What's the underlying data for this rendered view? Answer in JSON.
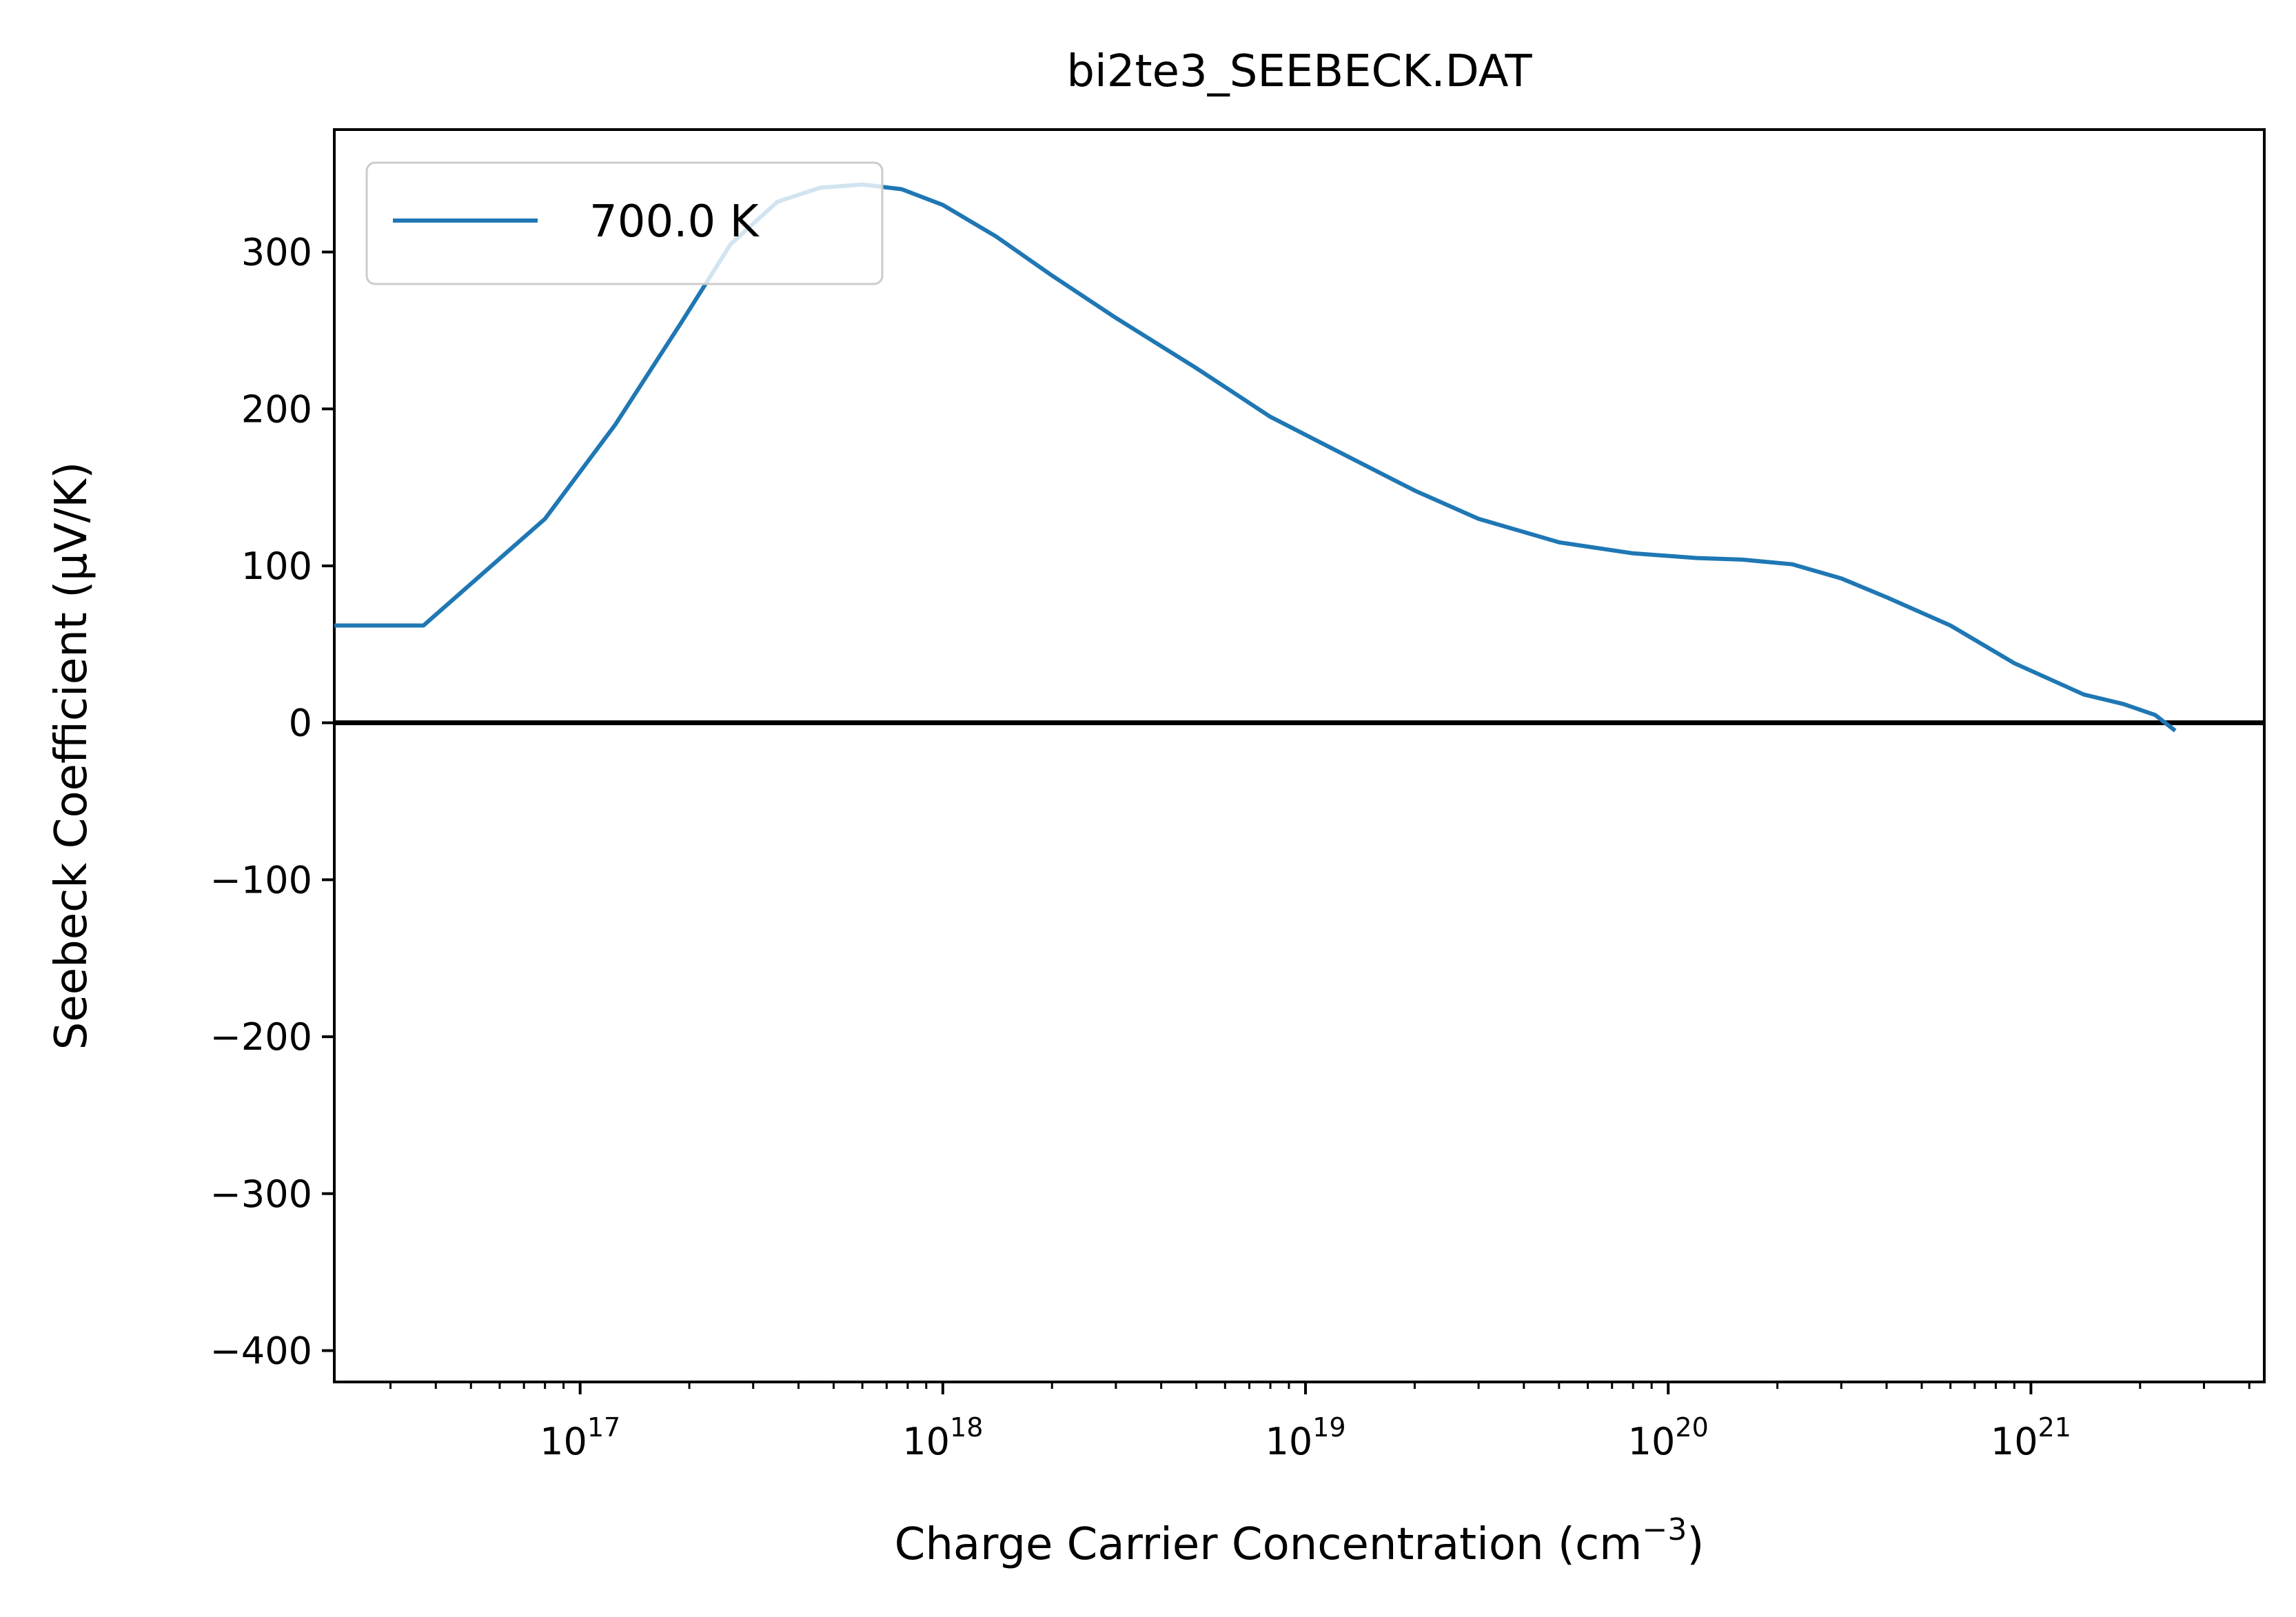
{
  "chart_data": {
    "type": "line",
    "title": "bi2te3_SEEBECK.DAT",
    "xlabel": "Charge Carrier Concentration (cm",
    "xlabel_sup": "−3",
    "xlabel_end": ")",
    "ylabel": "Seebeck Coefficient (μV/K)",
    "x_scale": "log",
    "xlim": [
      2.1e+16,
      4.4e+21
    ],
    "ylim": [
      -420,
      378
    ],
    "x_ticks": [
      {
        "value": 1e+17,
        "base": "10",
        "exp": "17"
      },
      {
        "value": 1e+18,
        "base": "10",
        "exp": "18"
      },
      {
        "value": 1e+19,
        "base": "10",
        "exp": "19"
      },
      {
        "value": 1e+20,
        "base": "10",
        "exp": "20"
      },
      {
        "value": 1e+21,
        "base": "10",
        "exp": "21"
      }
    ],
    "y_ticks": [
      {
        "value": 300,
        "label": "300"
      },
      {
        "value": 200,
        "label": "200"
      },
      {
        "value": 100,
        "label": "100"
      },
      {
        "value": 0,
        "label": "0"
      },
      {
        "value": -100,
        "label": "−100"
      },
      {
        "value": -200,
        "label": "−200"
      },
      {
        "value": -300,
        "label": "−300"
      },
      {
        "value": -400,
        "label": "−400"
      }
    ],
    "grid": false,
    "legend_position": "top-left",
    "zero_line": true,
    "series": [
      {
        "name": "700.0 K",
        "color": "#1f77b4",
        "x": [
          2.1e+16,
          3.7e+16,
          8e+16,
          1.25e+17,
          1.9e+17,
          2.6e+17,
          3.5e+17,
          4.6e+17,
          6e+17,
          7.7e+17,
          1e+18,
          1.4e+18,
          2e+18,
          3e+18,
          5e+18,
          8e+18,
          1.3e+19,
          2e+19,
          3e+19,
          5e+19,
          8e+19,
          1.2e+20,
          1.6e+20,
          2.2e+20,
          3e+20,
          4e+20,
          6e+20,
          9e+20,
          1.4e+21,
          1.8e+21,
          2.2e+21,
          2.5e+21
        ],
        "y": [
          62,
          62,
          130,
          190,
          255,
          305,
          332,
          341,
          343,
          340,
          330,
          310,
          285,
          258,
          226,
          195,
          170,
          148,
          130,
          115,
          108,
          105,
          104,
          101,
          92,
          80,
          62,
          38,
          18,
          12,
          5,
          -5
        ]
      }
    ]
  }
}
